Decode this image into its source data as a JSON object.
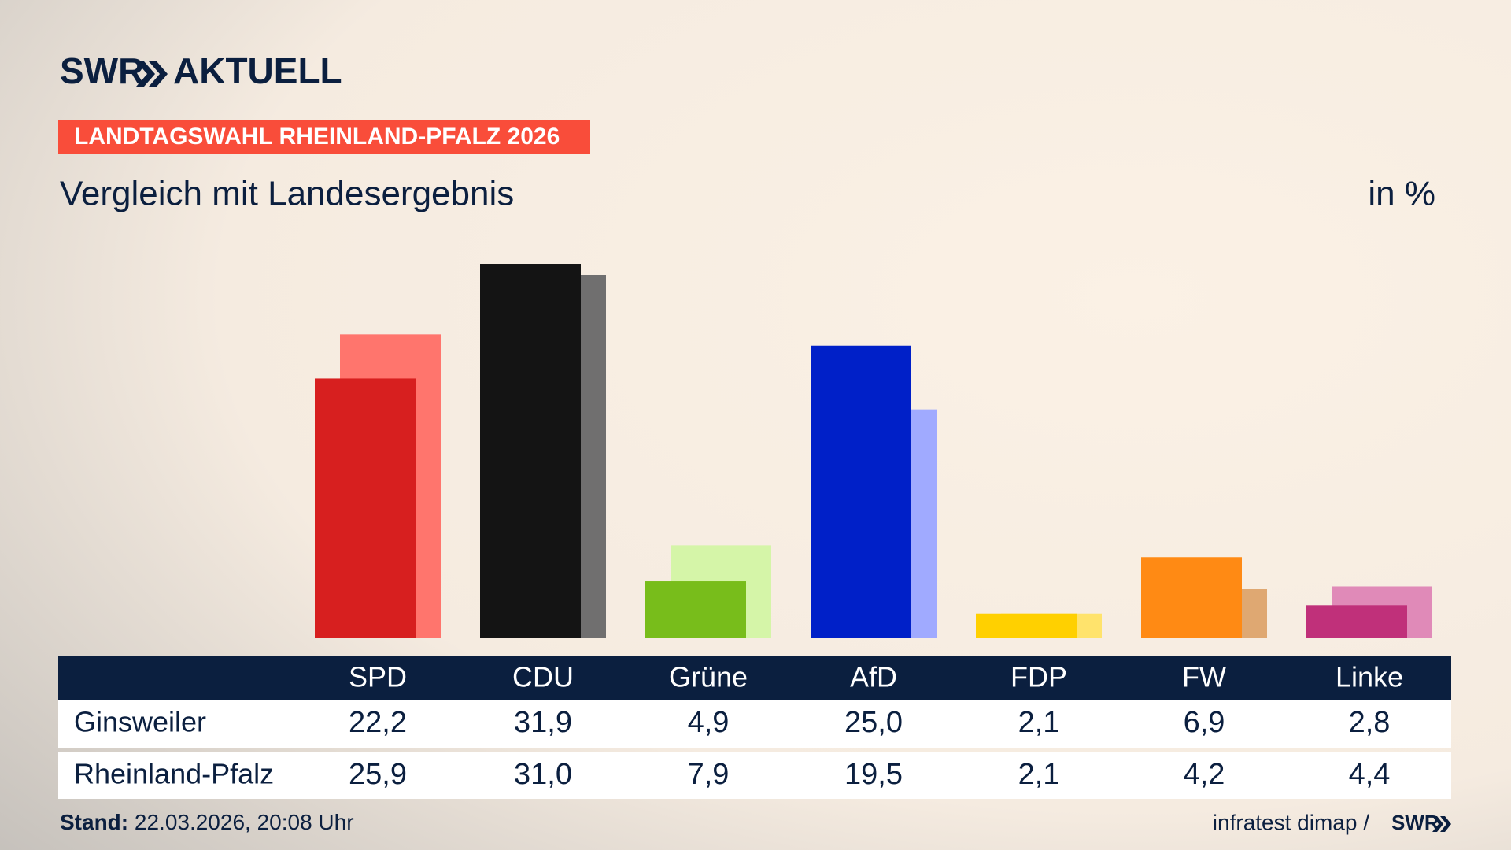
{
  "header": {
    "brand": "SWR",
    "brand_suffix": "AKTUELL",
    "tag": "LANDTAGSWAHL RHEINLAND-PFALZ 2026"
  },
  "chart_data": {
    "type": "bar",
    "title": "Vergleich mit Landesergebnis",
    "unit": "in %",
    "categories": [
      "SPD",
      "CDU",
      "Grüne",
      "AfD",
      "FDP",
      "FW",
      "Linke"
    ],
    "series": [
      {
        "name": "Ginsweiler",
        "colors": [
          "#d71f1f",
          "#141414",
          "#78bd1b",
          "#0020c8",
          "#ffd000",
          "#ff8a14",
          "#c0307a"
        ],
        "values": [
          22.2,
          31.9,
          4.9,
          25.0,
          2.1,
          6.9,
          2.8
        ],
        "value_labels": [
          "22,2",
          "31,9",
          "4,9",
          "25,0",
          "2,1",
          "6,9",
          "2,8"
        ]
      },
      {
        "name": "Rheinland-Pfalz",
        "colors": [
          "#ff756d",
          "#706f6f",
          "#d5f5a8",
          "#a0aaff",
          "#ffe36c",
          "#dfa872",
          "#e08ab8"
        ],
        "values": [
          25.9,
          31.0,
          7.9,
          19.5,
          2.1,
          4.2,
          4.4
        ],
        "value_labels": [
          "25,9",
          "31,0",
          "7,9",
          "19,5",
          "2,1",
          "4,2",
          "4,4"
        ]
      }
    ]
  },
  "footer": {
    "stand_label": "Stand:",
    "stand": "22.03.2026, 20:08 Uhr",
    "source": "infratest dimap /",
    "brand": "SWR"
  }
}
